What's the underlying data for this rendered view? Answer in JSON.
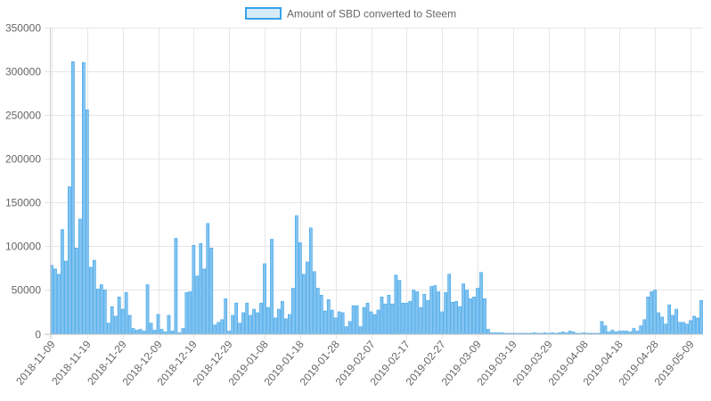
{
  "colors": {
    "bar_fill": "#83c3ee",
    "bar_stroke": "#36a2eb",
    "legend_fill": "#d7ecfb",
    "grid": "#e6e6e6",
    "text": "#666666"
  },
  "chart_data": {
    "type": "bar",
    "title": "",
    "xlabel": "",
    "ylabel": "",
    "ylim": [
      0,
      350000
    ],
    "y_ticks": [
      0,
      50000,
      100000,
      150000,
      200000,
      250000,
      300000,
      350000
    ],
    "y_tick_labels": [
      "0",
      "50000",
      "100000",
      "150000",
      "200000",
      "250000",
      "300000",
      "350000"
    ],
    "x_tick_labels": [
      "2018-11-09",
      "2018-11-19",
      "2018-11-29",
      "2018-12-09",
      "2018-12-19",
      "2018-12-29",
      "2019-01-08",
      "2019-01-18",
      "2019-01-28",
      "2019-02-07",
      "2019-02-17",
      "2019-02-27",
      "2019-03-09",
      "2019-03-19",
      "2019-03-29",
      "2019-04-08",
      "2019-04-18",
      "2019-04-28",
      "2019-05-09"
    ],
    "x_tick_positions": [
      0,
      10,
      20,
      30,
      40,
      50,
      60,
      70,
      80,
      90,
      100,
      110,
      120,
      130,
      140,
      150,
      160,
      170,
      180
    ],
    "grid": true,
    "legend_position": "top-center",
    "series": [
      {
        "name": "Amount of SBD converted to Steem",
        "values": [
          78000,
          74000,
          68000,
          119000,
          83000,
          168000,
          311000,
          98000,
          131000,
          310000,
          256000,
          76000,
          84000,
          51000,
          56000,
          50000,
          12000,
          31000,
          20000,
          42000,
          28000,
          47000,
          21000,
          6000,
          4000,
          5000,
          3000,
          56000,
          12000,
          4000,
          22000,
          5000,
          2000,
          21000,
          3000,
          109000,
          1000,
          6000,
          47000,
          48000,
          101000,
          66000,
          103000,
          74000,
          126000,
          98000,
          10000,
          13000,
          16000,
          40000,
          3000,
          21000,
          35000,
          12000,
          24000,
          35000,
          21000,
          28000,
          24000,
          35000,
          80000,
          30000,
          108000,
          18000,
          28000,
          37000,
          17000,
          22000,
          52000,
          135000,
          104000,
          68000,
          82000,
          121000,
          71000,
          52000,
          44000,
          26000,
          39000,
          27000,
          18000,
          25000,
          24000,
          8000,
          14000,
          32000,
          32000,
          8000,
          30000,
          35000,
          25000,
          22000,
          27000,
          42000,
          34000,
          44000,
          34000,
          67000,
          61000,
          35000,
          35000,
          37000,
          50000,
          48000,
          30000,
          45000,
          38000,
          54000,
          55000,
          48000,
          25000,
          47000,
          68000,
          36000,
          37000,
          31000,
          57000,
          50000,
          40000,
          42000,
          52000,
          70000,
          40000,
          5000,
          1000,
          1000,
          1000,
          1000,
          500,
          500,
          500,
          500,
          500,
          500,
          500,
          500,
          1000,
          500,
          500,
          1000,
          500,
          1000,
          500,
          1000,
          2000,
          1000,
          3000,
          2000,
          500,
          500,
          1000,
          500,
          500,
          500,
          500,
          14000,
          9000,
          2000,
          4000,
          2000,
          3000,
          3000,
          3000,
          2000,
          6000,
          3000,
          9000,
          16000,
          42000,
          48000,
          50000,
          24000,
          19000,
          11000,
          33000,
          21000,
          28000,
          13000,
          13000,
          11000,
          15000,
          20000,
          18000,
          38000
        ]
      }
    ]
  }
}
